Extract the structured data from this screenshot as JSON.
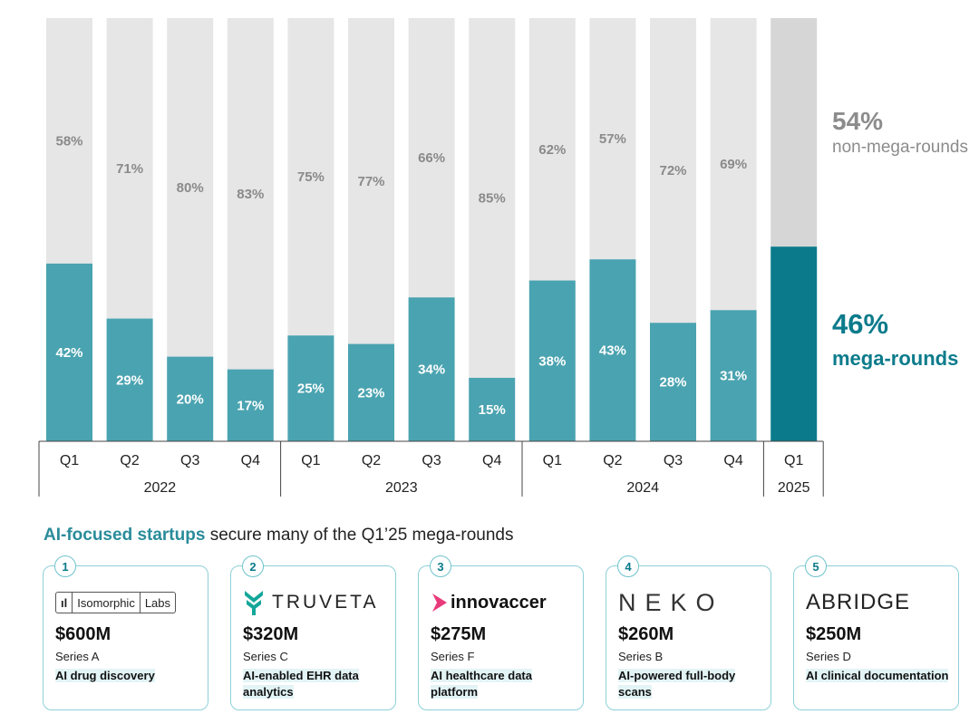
{
  "chart_data": {
    "type": "bar",
    "stacked": true,
    "normalized_percent": true,
    "years": [
      {
        "label": "2022",
        "quarters": [
          "Q1",
          "Q2",
          "Q3",
          "Q4"
        ]
      },
      {
        "label": "2023",
        "quarters": [
          "Q1",
          "Q2",
          "Q3",
          "Q4"
        ]
      },
      {
        "label": "2024",
        "quarters": [
          "Q1",
          "Q2",
          "Q3",
          "Q4"
        ]
      },
      {
        "label": "2025",
        "quarters": [
          "Q1"
        ]
      }
    ],
    "categories": [
      "Q1 2022",
      "Q2 2022",
      "Q3 2022",
      "Q4 2022",
      "Q1 2023",
      "Q2 2023",
      "Q3 2023",
      "Q4 2023",
      "Q1 2024",
      "Q2 2024",
      "Q3 2024",
      "Q4 2024",
      "Q1 2025"
    ],
    "series": [
      {
        "name": "mega-rounds",
        "values": [
          42,
          29,
          20,
          17,
          25,
          23,
          34,
          15,
          38,
          43,
          28,
          31,
          46
        ],
        "color": "#4aa3b0",
        "highlight_color": "#0b7b8b"
      },
      {
        "name": "non-mega-rounds",
        "values": [
          58,
          71,
          80,
          83,
          75,
          77,
          66,
          85,
          62,
          57,
          72,
          69,
          54
        ],
        "color": "#e6e6e6",
        "highlight_color": "#d6d6d6"
      }
    ],
    "value_labels": {
      "mega": [
        "42%",
        "29%",
        "20%",
        "17%",
        "25%",
        "23%",
        "34%",
        "15%",
        "38%",
        "43%",
        "28%",
        "31%",
        ""
      ],
      "non_mega": [
        "58%",
        "71%",
        "80%",
        "83%",
        "75%",
        "77%",
        "66%",
        "85%",
        "62%",
        "57%",
        "72%",
        "69%",
        ""
      ]
    },
    "ylim": [
      0,
      100
    ],
    "callouts": {
      "top_pct": "54%",
      "top_label": "non-mega-rounds",
      "bottom_pct": "46%",
      "bottom_label": "mega-rounds"
    }
  },
  "section": {
    "heading_highlight": "AI-focused startups",
    "heading_rest": " secure many of the Q1’25 mega-rounds"
  },
  "cards": [
    {
      "rank": "1",
      "logo": {
        "mark": "ıl",
        "parts": [
          "Isomorphic",
          "Labs"
        ]
      },
      "amount": "$600M",
      "series": "Series A",
      "desc": "AI drug discovery"
    },
    {
      "rank": "2",
      "logo": {
        "text": "TRUVETA"
      },
      "amount": "$320M",
      "series": "Series C",
      "desc": "AI-enabled EHR data analytics"
    },
    {
      "rank": "3",
      "logo": {
        "text": "innovaccer"
      },
      "amount": "$275M",
      "series": "Series F",
      "desc": "AI healthcare data platform"
    },
    {
      "rank": "4",
      "logo": {
        "text": "NEKO"
      },
      "amount": "$260M",
      "series": "Series B",
      "desc": "AI-powered full-body scans"
    },
    {
      "rank": "5",
      "logo": {
        "text": "ABRIDGE"
      },
      "amount": "$250M",
      "series": "Series D",
      "desc": "AI clinical documentation"
    }
  ],
  "colors": {
    "accent": "#0b7b8b",
    "teal": "#4aa3b0",
    "gray": "#e6e6e6",
    "card_border": "#8ed0d8"
  }
}
